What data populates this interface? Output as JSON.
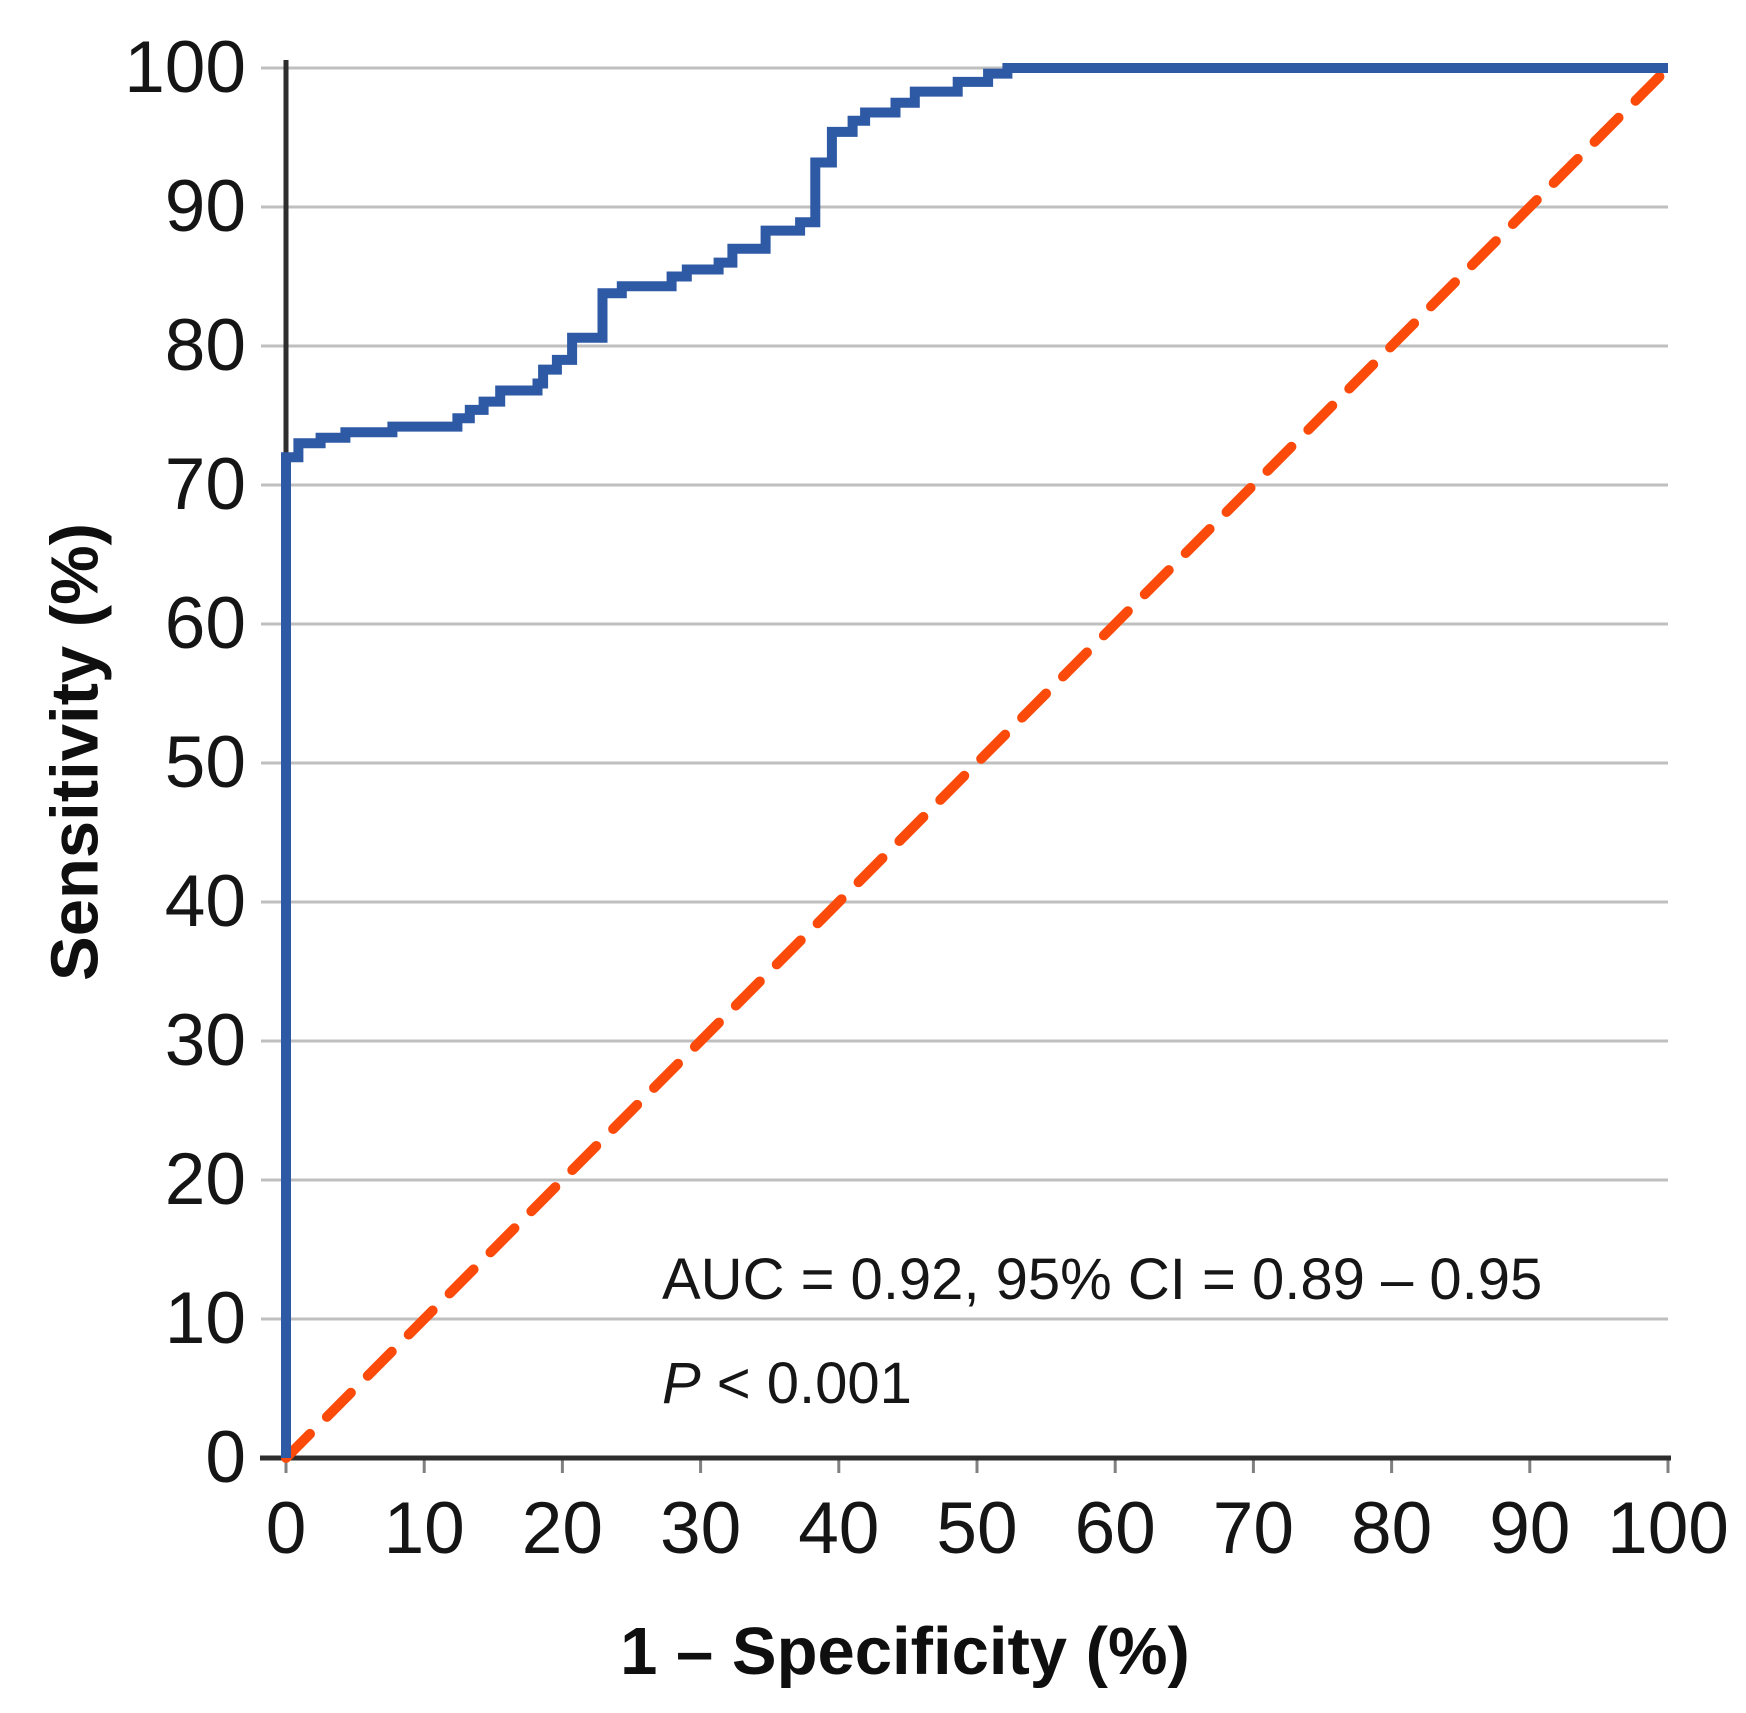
{
  "axes": {
    "x_title": "1 – Specificity (%)",
    "y_title": "Sensitivity (%)"
  },
  "annotations": {
    "auc": "AUC = 0.92, 95% CI = 0.89 – 0.95",
    "p_symbol": "P",
    "p_rest": " < 0.001"
  },
  "colors": {
    "roc_curve": "#2d59a5",
    "diagonal": "#fb4a0a",
    "gridline": "#bfbfbf",
    "axis": "#2e2e2e",
    "tick_mark": "#808080",
    "text": "#151515"
  },
  "chart_data": {
    "type": "line",
    "subtype": "roc-curve",
    "title": "",
    "xlabel": "1 – Specificity (%)",
    "ylabel": "Sensitivity (%)",
    "xlim": [
      0,
      100
    ],
    "ylim": [
      0,
      100
    ],
    "x_ticks": [
      0,
      10,
      20,
      30,
      40,
      50,
      60,
      70,
      80,
      90,
      100
    ],
    "y_ticks": [
      0,
      10,
      20,
      30,
      40,
      50,
      60,
      70,
      80,
      90,
      100
    ],
    "grid": "horizontal-only",
    "legend": "none",
    "auc": 0.92,
    "ci_95": "0.89 – 0.95",
    "p_value": "< 0.001",
    "annotations": [
      "AUC = 0.92, 95% CI = 0.89 – 0.95",
      "P < 0.001"
    ],
    "series": [
      {
        "name": "ROC curve",
        "style": "solid",
        "color": "#2d59a5",
        "width": 10,
        "dash": null,
        "points": [
          [
            0,
            0
          ],
          [
            0,
            72
          ],
          [
            0.9,
            72
          ],
          [
            0.9,
            73
          ],
          [
            2.5,
            73
          ],
          [
            2.5,
            73.4
          ],
          [
            4.3,
            73.4
          ],
          [
            4.3,
            73.8
          ],
          [
            7.7,
            73.8
          ],
          [
            7.7,
            74.2
          ],
          [
            12.4,
            74.2
          ],
          [
            12.4,
            74.8
          ],
          [
            13.3,
            74.8
          ],
          [
            13.3,
            75.4
          ],
          [
            14.3,
            75.4
          ],
          [
            14.3,
            76
          ],
          [
            15.5,
            76
          ],
          [
            15.5,
            76.8
          ],
          [
            18.2,
            76.8
          ],
          [
            18.2,
            77.3
          ],
          [
            18.6,
            77.3
          ],
          [
            18.6,
            78.3
          ],
          [
            19.6,
            78.3
          ],
          [
            19.6,
            79
          ],
          [
            20.7,
            79
          ],
          [
            20.7,
            80.6
          ],
          [
            22.9,
            80.6
          ],
          [
            22.9,
            83.8
          ],
          [
            24.3,
            83.8
          ],
          [
            24.3,
            84.3
          ],
          [
            27.9,
            84.3
          ],
          [
            27.9,
            85
          ],
          [
            29,
            85
          ],
          [
            29,
            85.5
          ],
          [
            31.3,
            85.5
          ],
          [
            31.3,
            86
          ],
          [
            32.3,
            86
          ],
          [
            32.3,
            87
          ],
          [
            34.7,
            87
          ],
          [
            34.7,
            88.3
          ],
          [
            37.2,
            88.3
          ],
          [
            37.2,
            88.9
          ],
          [
            38.3,
            88.9
          ],
          [
            38.3,
            93.2
          ],
          [
            39.5,
            93.2
          ],
          [
            39.5,
            95.4
          ],
          [
            41,
            95.4
          ],
          [
            41,
            96.2
          ],
          [
            41.9,
            96.2
          ],
          [
            41.9,
            96.8
          ],
          [
            44.1,
            96.8
          ],
          [
            44.1,
            97.5
          ],
          [
            45.5,
            97.5
          ],
          [
            45.5,
            98.3
          ],
          [
            48.6,
            98.3
          ],
          [
            48.6,
            99
          ],
          [
            50.8,
            99
          ],
          [
            50.8,
            99.6
          ],
          [
            52.2,
            99.6
          ],
          [
            52.2,
            100
          ],
          [
            100,
            100
          ]
        ]
      },
      {
        "name": "Reference diagonal (chance line)",
        "style": "dashed",
        "color": "#fb4a0a",
        "width": 10,
        "dash": [
          34,
          24
        ],
        "points": [
          [
            0,
            0
          ],
          [
            100,
            100
          ]
        ]
      }
    ]
  }
}
